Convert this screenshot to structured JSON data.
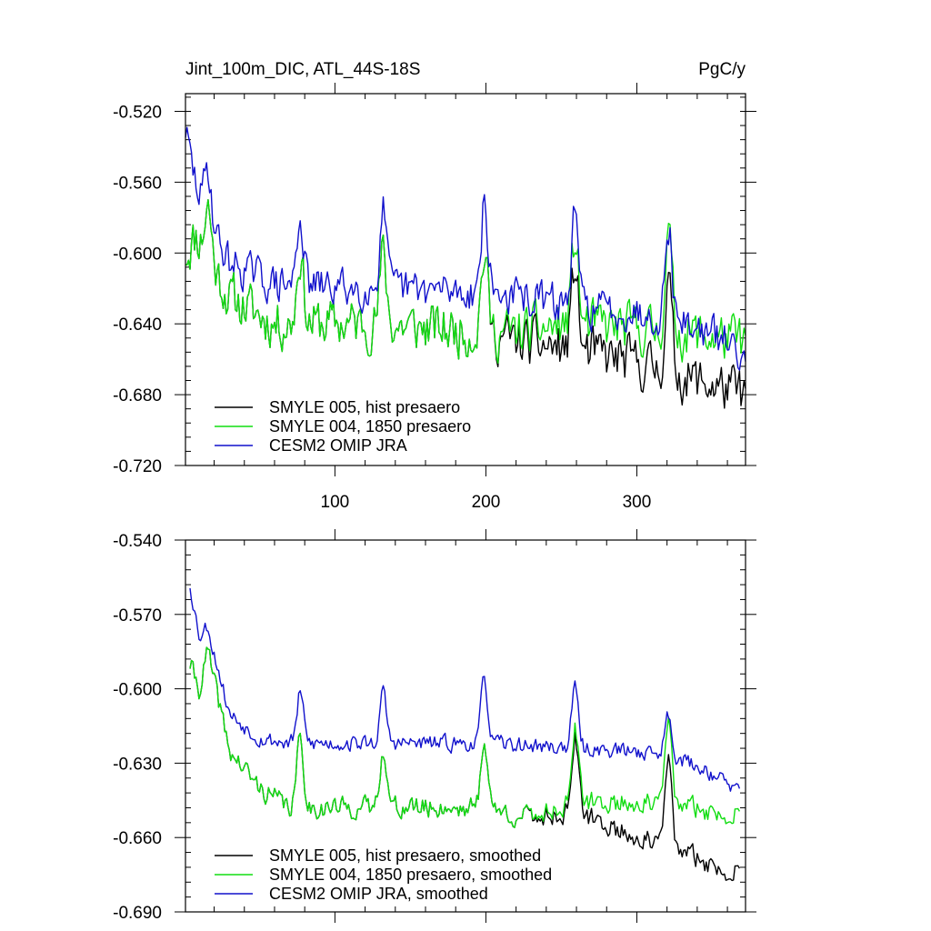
{
  "chart_data": [
    {
      "type": "line",
      "title_left": "Jint_100m_DIC, ATL_44S-18S",
      "title_right": "PgC/y",
      "xlabel": "",
      "ylabel": "",
      "xlim": [
        1,
        372
      ],
      "ylim": [
        -0.72,
        -0.51
      ],
      "yticks": [
        -0.72,
        -0.68,
        -0.64,
        -0.6,
        -0.56,
        -0.52
      ],
      "ytick_labels": [
        "-0.720",
        "-0.680",
        "-0.640",
        "-0.600",
        "-0.560",
        "-0.520"
      ],
      "xticks": [
        100,
        200,
        300
      ],
      "xtick_labels": [
        "100",
        "200",
        "300"
      ],
      "legend_position": "bottom-left",
      "series": [
        {
          "name": "SMYLE 005, hist presaero",
          "color": "#000000",
          "seed": 11,
          "amp": 0.013,
          "knots": [
            [
              1,
              -0.6
            ],
            [
              8,
              -0.59
            ],
            [
              30,
              -0.625
            ],
            [
              60,
              -0.64
            ],
            [
              120,
              -0.64
            ],
            [
              200,
              -0.645
            ],
            [
              220,
              -0.65
            ],
            [
              260,
              -0.655
            ],
            [
              300,
              -0.662
            ],
            [
              340,
              -0.672
            ],
            [
              372,
              -0.68
            ]
          ],
          "peaks": [
            [
              16,
              0.03
            ],
            [
              77,
              0.04
            ],
            [
              132,
              0.04
            ],
            [
              199,
              0.045
            ],
            [
              259,
              0.048
            ],
            [
              321,
              0.05
            ]
          ]
        },
        {
          "name": "SMYLE 004, 1850 presaero",
          "color": "#11dd11",
          "seed": 11,
          "amp": 0.013,
          "knots": [
            [
              1,
              -0.6
            ],
            [
              8,
              -0.59
            ],
            [
              30,
              -0.625
            ],
            [
              60,
              -0.64
            ],
            [
              120,
              -0.64
            ],
            [
              200,
              -0.645
            ],
            [
              220,
              -0.645
            ],
            [
              260,
              -0.64
            ],
            [
              300,
              -0.643
            ],
            [
              340,
              -0.646
            ],
            [
              372,
              -0.65
            ]
          ],
          "peaks": [
            [
              16,
              0.03
            ],
            [
              77,
              0.04
            ],
            [
              132,
              0.04
            ],
            [
              199,
              0.045
            ],
            [
              259,
              0.048
            ],
            [
              321,
              0.055
            ]
          ]
        },
        {
          "name": "CESM2 OMIP JRA",
          "color": "#1111cc",
          "seed": 29,
          "amp": 0.01,
          "knots": [
            [
              1,
              -0.53
            ],
            [
              6,
              -0.555
            ],
            [
              15,
              -0.58
            ],
            [
              30,
              -0.605
            ],
            [
              60,
              -0.618
            ],
            [
              120,
              -0.62
            ],
            [
              200,
              -0.622
            ],
            [
              260,
              -0.63
            ],
            [
              320,
              -0.635
            ],
            [
              372,
              -0.655
            ]
          ],
          "peaks": [
            [
              16,
              0.03
            ],
            [
              77,
              0.04
            ],
            [
              132,
              0.045
            ],
            [
              199,
              0.05
            ],
            [
              259,
              0.05
            ],
            [
              321,
              0.05
            ]
          ]
        }
      ]
    },
    {
      "type": "line",
      "title_left": "",
      "title_right": "",
      "xlabel": "",
      "ylabel": "",
      "xlim": [
        1,
        372
      ],
      "ylim": [
        -0.69,
        -0.54
      ],
      "yticks": [
        -0.69,
        -0.66,
        -0.63,
        -0.6,
        -0.57,
        -0.54
      ],
      "ytick_labels": [
        "-0.690",
        "-0.660",
        "-0.630",
        "-0.600",
        "-0.570",
        "-0.540"
      ],
      "xticks": [
        100,
        200,
        300
      ],
      "xtick_labels": [
        "",
        "",
        ""
      ],
      "legend_position": "bottom-left",
      "series": [
        {
          "name": "SMYLE 005, hist presaero, smoothed",
          "color": "#000000",
          "seed": 41,
          "amp": 0.004,
          "knots": [
            [
              4,
              -0.59
            ],
            [
              10,
              -0.6
            ],
            [
              15,
              -0.593
            ],
            [
              22,
              -0.602
            ],
            [
              30,
              -0.625
            ],
            [
              50,
              -0.64
            ],
            [
              70,
              -0.648
            ],
            [
              120,
              -0.648
            ],
            [
              200,
              -0.648
            ],
            [
              225,
              -0.652
            ],
            [
              260,
              -0.65
            ],
            [
              300,
              -0.66
            ],
            [
              340,
              -0.668
            ],
            [
              360,
              -0.675
            ],
            [
              368,
              -0.668
            ]
          ],
          "peaks": [
            [
              16,
              0.008
            ],
            [
              77,
              0.028
            ],
            [
              132,
              0.025
            ],
            [
              199,
              0.028
            ],
            [
              259,
              0.03
            ],
            [
              321,
              0.036
            ]
          ]
        },
        {
          "name": "SMYLE 004, 1850 presaero, smoothed",
          "color": "#11dd11",
          "seed": 41,
          "amp": 0.004,
          "knots": [
            [
              4,
              -0.59
            ],
            [
              10,
              -0.6
            ],
            [
              15,
              -0.593
            ],
            [
              22,
              -0.602
            ],
            [
              30,
              -0.625
            ],
            [
              50,
              -0.64
            ],
            [
              70,
              -0.648
            ],
            [
              120,
              -0.648
            ],
            [
              200,
              -0.648
            ],
            [
              225,
              -0.652
            ],
            [
              260,
              -0.646
            ],
            [
              300,
              -0.646
            ],
            [
              340,
              -0.648
            ],
            [
              360,
              -0.652
            ],
            [
              368,
              -0.645
            ]
          ],
          "peaks": [
            [
              16,
              0.008
            ],
            [
              77,
              0.028
            ],
            [
              132,
              0.025
            ],
            [
              199,
              0.028
            ],
            [
              259,
              0.03
            ],
            [
              321,
              0.034
            ]
          ]
        },
        {
          "name": "CESM2 OMIP JRA, smoothed",
          "color": "#1111cc",
          "seed": 53,
          "amp": 0.003,
          "knots": [
            [
              4,
              -0.558
            ],
            [
              10,
              -0.578
            ],
            [
              15,
              -0.58
            ],
            [
              22,
              -0.59
            ],
            [
              30,
              -0.61
            ],
            [
              50,
              -0.62
            ],
            [
              70,
              -0.622
            ],
            [
              120,
              -0.622
            ],
            [
              200,
              -0.622
            ],
            [
              260,
              -0.624
            ],
            [
              320,
              -0.626
            ],
            [
              350,
              -0.634
            ],
            [
              368,
              -0.642
            ]
          ],
          "peaks": [
            [
              16,
              0.006
            ],
            [
              77,
              0.02
            ],
            [
              132,
              0.02
            ],
            [
              199,
              0.026
            ],
            [
              259,
              0.024
            ],
            [
              321,
              0.016
            ]
          ]
        }
      ]
    }
  ]
}
